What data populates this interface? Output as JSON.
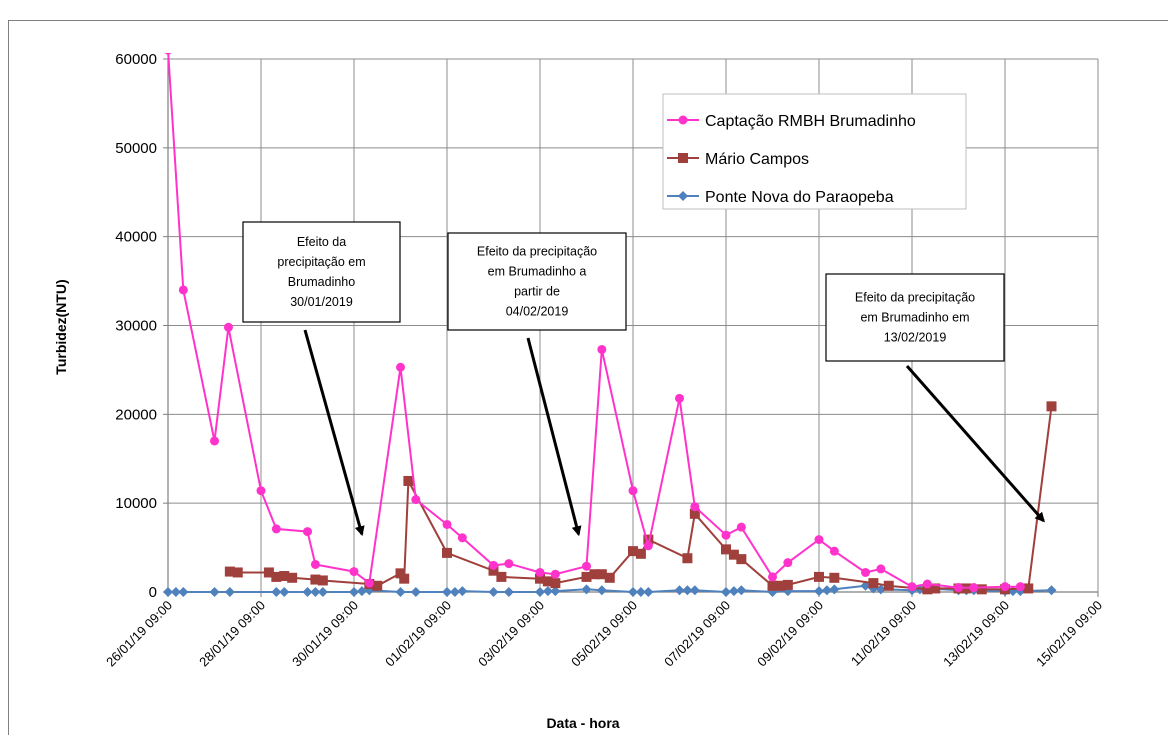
{
  "chart_data": {
    "type": "line",
    "xlabel": "Data - hora",
    "ylabel": "Turbidez(NTU)",
    "ylim": [
      0,
      60000
    ],
    "y_ticks": [
      "0",
      "10000",
      "20000",
      "30000",
      "40000",
      "50000",
      "60000"
    ],
    "x_ticks": [
      "26/01/19 09:00",
      "28/01/19 09:00",
      "30/01/19 09:00",
      "01/02/19 09:00",
      "03/02/19 09:00",
      "05/02/19 09:00",
      "07/02/19 09:00",
      "09/02/19 09:00",
      "11/02/19 09:00",
      "13/02/19 09:00",
      "15/02/19 09:00"
    ],
    "x_unit": "days since 26/01/19 09:00",
    "xlim": [
      0,
      20
    ],
    "grid": true,
    "legend_position": "top-right",
    "series": [
      {
        "name": "Captação RMBH Brumadinho",
        "color": "#ff33cc",
        "marker": "circle",
        "points": [
          [
            0.0,
            61000
          ],
          [
            0.33,
            34000
          ],
          [
            1.0,
            17000
          ],
          [
            1.3,
            29800
          ],
          [
            2.0,
            11400
          ],
          [
            2.33,
            7100
          ],
          [
            3.0,
            6800
          ],
          [
            3.17,
            3100
          ],
          [
            4.0,
            2300
          ],
          [
            4.33,
            1000
          ],
          [
            5.0,
            25300
          ],
          [
            5.33,
            10400
          ],
          [
            6.0,
            7600
          ],
          [
            6.33,
            6100
          ],
          [
            7.0,
            3000
          ],
          [
            7.33,
            3200
          ],
          [
            8.0,
            2200
          ],
          [
            8.33,
            2000
          ],
          [
            9.0,
            2900
          ],
          [
            9.33,
            27300
          ],
          [
            10.0,
            11400
          ],
          [
            10.33,
            5200
          ],
          [
            11.0,
            21800
          ],
          [
            11.33,
            9600
          ],
          [
            12.0,
            6400
          ],
          [
            12.33,
            7300
          ],
          [
            13.0,
            1700
          ],
          [
            13.33,
            3300
          ],
          [
            14.0,
            5900
          ],
          [
            14.33,
            4600
          ],
          [
            15.0,
            2200
          ],
          [
            15.33,
            2600
          ],
          [
            16.0,
            600
          ],
          [
            16.33,
            900
          ],
          [
            17.0,
            500
          ],
          [
            17.33,
            500
          ],
          [
            18.0,
            600
          ],
          [
            18.33,
            600
          ]
        ]
      },
      {
        "name": "Mário Campos",
        "color": "#a0403c",
        "marker": "square",
        "points": [
          [
            1.33,
            2300
          ],
          [
            1.5,
            2200
          ],
          [
            2.17,
            2200
          ],
          [
            2.33,
            1700
          ],
          [
            2.5,
            1800
          ],
          [
            2.67,
            1600
          ],
          [
            3.17,
            1400
          ],
          [
            3.33,
            1300
          ],
          [
            4.33,
            900
          ],
          [
            4.5,
            700
          ],
          [
            5.0,
            2100
          ],
          [
            5.17,
            12500
          ],
          [
            5.08,
            1500
          ],
          [
            6.0,
            4400
          ],
          [
            7.0,
            2400
          ],
          [
            7.17,
            1700
          ],
          [
            8.0,
            1500
          ],
          [
            8.17,
            1200
          ],
          [
            8.33,
            1000
          ],
          [
            9.0,
            1700
          ],
          [
            9.17,
            2000
          ],
          [
            9.33,
            2000
          ],
          [
            9.5,
            1600
          ],
          [
            10.0,
            4600
          ],
          [
            10.17,
            4300
          ],
          [
            10.33,
            5900
          ],
          [
            11.17,
            3800
          ],
          [
            11.33,
            8800
          ],
          [
            12.0,
            4800
          ],
          [
            12.17,
            4200
          ],
          [
            12.33,
            3700
          ],
          [
            13.0,
            700
          ],
          [
            13.17,
            700
          ],
          [
            13.33,
            800
          ],
          [
            14.0,
            1700
          ],
          [
            14.33,
            1600
          ],
          [
            15.17,
            1000
          ],
          [
            15.5,
            700
          ],
          [
            16.33,
            300
          ],
          [
            16.5,
            400
          ],
          [
            17.0,
            400
          ],
          [
            17.17,
            400
          ],
          [
            17.5,
            300
          ],
          [
            18.0,
            300
          ],
          [
            18.5,
            400
          ],
          [
            19.0,
            20900
          ]
        ]
      },
      {
        "name": "Ponte Nova do Paraopeba",
        "color": "#4f81bd",
        "marker": "diamond",
        "points": [
          [
            0.0,
            0
          ],
          [
            0.17,
            0
          ],
          [
            0.33,
            0
          ],
          [
            1.0,
            0
          ],
          [
            1.33,
            0
          ],
          [
            2.33,
            0
          ],
          [
            2.5,
            0
          ],
          [
            3.0,
            0
          ],
          [
            3.17,
            0
          ],
          [
            3.33,
            0
          ],
          [
            4.0,
            0
          ],
          [
            4.17,
            100
          ],
          [
            4.33,
            200
          ],
          [
            5.0,
            0
          ],
          [
            5.33,
            0
          ],
          [
            6.0,
            0
          ],
          [
            6.17,
            0
          ],
          [
            6.33,
            100
          ],
          [
            7.0,
            0
          ],
          [
            7.33,
            0
          ],
          [
            8.0,
            0
          ],
          [
            8.17,
            100
          ],
          [
            8.33,
            100
          ],
          [
            9.0,
            300
          ],
          [
            9.33,
            200
          ],
          [
            10.0,
            0
          ],
          [
            10.17,
            0
          ],
          [
            10.33,
            0
          ],
          [
            11.0,
            200
          ],
          [
            11.17,
            200
          ],
          [
            11.33,
            200
          ],
          [
            12.0,
            0
          ],
          [
            12.17,
            100
          ],
          [
            12.33,
            200
          ],
          [
            13.0,
            0
          ],
          [
            13.33,
            100
          ],
          [
            14.0,
            100
          ],
          [
            14.17,
            200
          ],
          [
            14.33,
            300
          ],
          [
            15.0,
            700
          ],
          [
            15.17,
            400
          ],
          [
            15.33,
            300
          ],
          [
            16.0,
            200
          ],
          [
            16.17,
            300
          ],
          [
            16.33,
            400
          ],
          [
            17.0,
            200
          ],
          [
            17.17,
            200
          ],
          [
            17.33,
            200
          ],
          [
            18.0,
            100
          ],
          [
            18.17,
            100
          ],
          [
            18.33,
            100
          ],
          [
            19.0,
            200
          ]
        ]
      }
    ],
    "annotations": [
      {
        "lines": [
          "Efeito da",
          "precipitação em",
          "Brumadinho",
          "30/01/2019"
        ],
        "target": [
          4.17,
          6500
        ]
      },
      {
        "lines": [
          "Efeito da precipitação",
          "em Brumadinho a",
          "partir de",
          "04/02/2019"
        ],
        "target": [
          8.83,
          6500
        ]
      },
      {
        "lines": [
          "Efeito da precipitação",
          "em Brumadinho em",
          "13/02/2019"
        ],
        "target": [
          18.83,
          8000
        ]
      }
    ]
  }
}
